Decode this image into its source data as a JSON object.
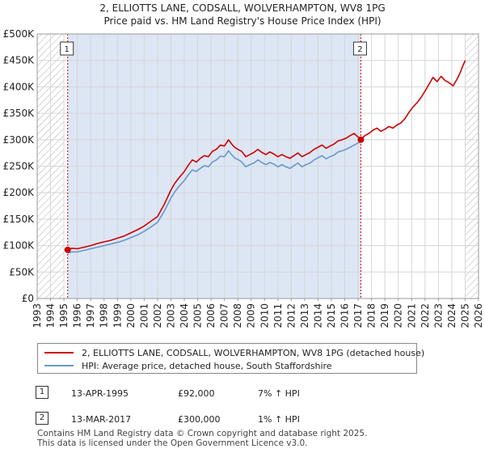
{
  "chart_data": {
    "type": "line",
    "title": "2, ELLIOTTS LANE, CODSALL, WOLVERHAMPTON, WV8 1PG",
    "subtitle": "Price paid vs. HM Land Registry's House Price Index (HPI)",
    "xlim": [
      1993,
      2026
    ],
    "ylim": [
      0,
      500000
    ],
    "x_ticks": [
      "1993",
      "1994",
      "1995",
      "1996",
      "1997",
      "1998",
      "1999",
      "2000",
      "2001",
      "2002",
      "2003",
      "2004",
      "2005",
      "2006",
      "2007",
      "2008",
      "2009",
      "2010",
      "2011",
      "2012",
      "2013",
      "2014",
      "2015",
      "2016",
      "2017",
      "2018",
      "2019",
      "2020",
      "2021",
      "2022",
      "2023",
      "2024",
      "2025",
      "2026"
    ],
    "y_ticks": [
      {
        "value": 0,
        "label": "£0"
      },
      {
        "value": 50000,
        "label": "£50K"
      },
      {
        "value": 100000,
        "label": "£100K"
      },
      {
        "value": 150000,
        "label": "£150K"
      },
      {
        "value": 200000,
        "label": "£200K"
      },
      {
        "value": 250000,
        "label": "£250K"
      },
      {
        "value": 300000,
        "label": "£300K"
      },
      {
        "value": 350000,
        "label": "£350K"
      },
      {
        "value": 400000,
        "label": "£400K"
      },
      {
        "value": 450000,
        "label": "£450K"
      },
      {
        "value": 500000,
        "label": "£500K"
      }
    ],
    "grid": true,
    "hatched_ranges": [
      [
        1993,
        1995.0
      ],
      [
        2025.0,
        2026
      ]
    ],
    "shaded_range": [
      1995.28,
      2017.2
    ],
    "series": [
      {
        "name": "2, ELLIOTTS LANE, CODSALL, WOLVERHAMPTON, WV8 1PG (detached house)",
        "color": "#cc0000",
        "x": [
          1995.28,
          1995.6,
          1996.0,
          1996.5,
          1997.0,
          1997.5,
          1998.0,
          1998.5,
          1999.0,
          1999.5,
          2000.0,
          2000.5,
          2001.0,
          2001.5,
          2002.0,
          2002.5,
          2003.0,
          2003.3,
          2003.6,
          2004.0,
          2004.3,
          2004.6,
          2004.9,
          2005.2,
          2005.5,
          2005.8,
          2006.1,
          2006.4,
          2006.7,
          2007.0,
          2007.3,
          2007.6,
          2007.8,
          2008.0,
          2008.3,
          2008.6,
          2008.9,
          2009.2,
          2009.5,
          2009.8,
          2010.1,
          2010.4,
          2010.7,
          2011.0,
          2011.3,
          2011.6,
          2011.9,
          2012.2,
          2012.5,
          2012.8,
          2013.1,
          2013.4,
          2013.7,
          2014.0,
          2014.3,
          2014.6,
          2014.9,
          2015.2,
          2015.5,
          2015.8,
          2016.1,
          2016.4,
          2016.7,
          2017.0,
          2017.2,
          2017.5,
          2017.8,
          2018.1,
          2018.4,
          2018.7,
          2019.0,
          2019.3,
          2019.6,
          2019.9,
          2020.2,
          2020.5,
          2020.8,
          2021.1,
          2021.4,
          2021.7,
          2022.0,
          2022.3,
          2022.6,
          2022.9,
          2023.2,
          2023.5,
          2023.8,
          2024.1,
          2024.4,
          2024.6,
          2024.8,
          2025.0
        ],
        "y": [
          92000,
          95000,
          94000,
          97000,
          100000,
          104000,
          107000,
          110000,
          114000,
          118000,
          124000,
          130000,
          137000,
          146000,
          155000,
          178000,
          205000,
          218000,
          228000,
          240000,
          252000,
          262000,
          258000,
          265000,
          270000,
          268000,
          278000,
          282000,
          290000,
          288000,
          300000,
          290000,
          285000,
          282000,
          278000,
          268000,
          272000,
          276000,
          282000,
          276000,
          272000,
          277000,
          273000,
          268000,
          272000,
          268000,
          265000,
          270000,
          275000,
          268000,
          272000,
          276000,
          282000,
          286000,
          290000,
          284000,
          288000,
          292000,
          298000,
          300000,
          303000,
          308000,
          312000,
          305000,
          300000,
          308000,
          312000,
          318000,
          322000,
          316000,
          320000,
          325000,
          322000,
          328000,
          332000,
          340000,
          352000,
          362000,
          370000,
          380000,
          392000,
          405000,
          418000,
          410000,
          420000,
          412000,
          408000,
          402000,
          415000,
          425000,
          438000,
          450000
        ]
      },
      {
        "name": "HPI: Average price, detached house, South Staffordshire",
        "color": "#6699cc",
        "x": [
          1995.28,
          1995.6,
          1996.0,
          1996.5,
          1997.0,
          1997.5,
          1998.0,
          1998.5,
          1999.0,
          1999.5,
          2000.0,
          2000.5,
          2001.0,
          2001.5,
          2002.0,
          2002.5,
          2003.0,
          2003.3,
          2003.6,
          2004.0,
          2004.3,
          2004.6,
          2004.9,
          2005.2,
          2005.5,
          2005.8,
          2006.1,
          2006.4,
          2006.7,
          2007.0,
          2007.3,
          2007.6,
          2007.8,
          2008.0,
          2008.3,
          2008.6,
          2008.9,
          2009.2,
          2009.5,
          2009.8,
          2010.1,
          2010.4,
          2010.7,
          2011.0,
          2011.3,
          2011.6,
          2011.9,
          2012.2,
          2012.5,
          2012.8,
          2013.1,
          2013.4,
          2013.7,
          2014.0,
          2014.3,
          2014.6,
          2014.9,
          2015.2,
          2015.5,
          2015.8,
          2016.1,
          2016.4,
          2016.7,
          2017.0,
          2017.2
        ],
        "y": [
          86000,
          88000,
          88000,
          91000,
          94000,
          97000,
          100000,
          103000,
          106000,
          110000,
          115000,
          120000,
          127000,
          135000,
          144000,
          165000,
          190000,
          202000,
          212000,
          223000,
          234000,
          243000,
          240000,
          246000,
          251000,
          249000,
          258000,
          262000,
          269000,
          268000,
          279000,
          270000,
          265000,
          263000,
          258000,
          249000,
          253000,
          256000,
          262000,
          257000,
          253000,
          257000,
          254000,
          249000,
          253000,
          249000,
          246000,
          251000,
          256000,
          249000,
          253000,
          256000,
          262000,
          266000,
          270000,
          264000,
          268000,
          271000,
          277000,
          279000,
          282000,
          286000,
          290000,
          294000,
          297000
        ]
      }
    ],
    "sales": [
      {
        "marker": "1",
        "x": 1995.28,
        "y": 92000,
        "date": "13-APR-1995",
        "price": "£92,000",
        "hpi": "7% ↑ HPI"
      },
      {
        "marker": "2",
        "x": 2017.2,
        "y": 300000,
        "date": "13-MAR-2017",
        "price": "£300,000",
        "hpi": "1% ↑ HPI"
      }
    ]
  },
  "footer": {
    "line1": "Contains HM Land Registry data © Crown copyright and database right 2025.",
    "line2": "This data is licensed under the Open Government Licence v3.0."
  }
}
